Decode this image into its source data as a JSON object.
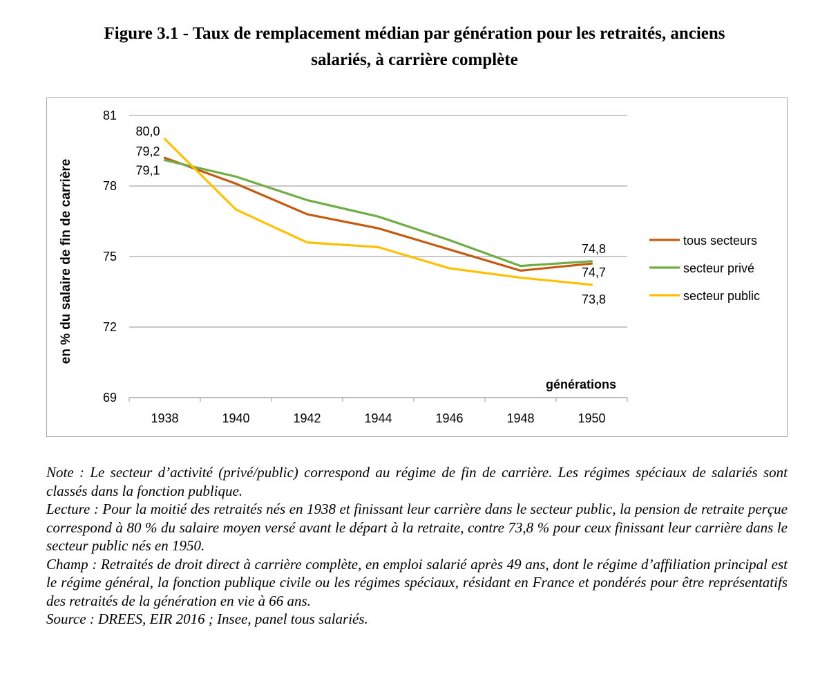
{
  "figure": {
    "title_line1": "Figure 3.1 - Taux de remplacement médian par génération pour les retraités, anciens",
    "title_line2": "salariés, à carrière complète"
  },
  "chart_data": {
    "type": "line",
    "x": [
      1938,
      1939,
      1940,
      1941,
      1942,
      1943,
      1944,
      1945,
      1946,
      1947,
      1948,
      1949,
      1950
    ],
    "x_tick_labels": [
      "1938",
      "1940",
      "1942",
      "1944",
      "1946",
      "1948",
      "1950"
    ],
    "xlabel": "générations",
    "ylabel": "en % du salaire de fin de carrière",
    "ylim": [
      69,
      81
    ],
    "y_ticks": [
      69,
      72,
      75,
      78,
      81
    ],
    "y_tick_labels": [
      "69",
      "72",
      "75",
      "78",
      "81"
    ],
    "grid": "horizontal",
    "legend_position": "right",
    "series": [
      {
        "name": "tous secteurs",
        "color": "#C55A11",
        "values": [
          79.2,
          null,
          78.1,
          null,
          76.8,
          null,
          76.2,
          null,
          75.3,
          null,
          74.4,
          null,
          74.7
        ],
        "labels": {
          "first": "79,2",
          "last": "74,7"
        }
      },
      {
        "name": "secteur privé",
        "color": "#70AD47",
        "values": [
          79.1,
          null,
          78.4,
          null,
          77.4,
          null,
          76.7,
          null,
          75.7,
          null,
          74.6,
          null,
          74.8
        ],
        "labels": {
          "first": "79,1",
          "last": "74,8"
        }
      },
      {
        "name": "secteur public",
        "color": "#FFC000",
        "values": [
          80.0,
          null,
          77.0,
          null,
          75.6,
          null,
          75.4,
          null,
          74.5,
          null,
          74.1,
          null,
          73.8
        ],
        "labels": {
          "first": "80,0",
          "last": "73,8"
        }
      }
    ]
  },
  "notes": {
    "note": "Note : Le secteur d’activité (privé/public) correspond au régime de fin de carrière. Les régimes spéciaux de salariés sont classés dans la fonction publique.",
    "lecture": "Lecture : Pour la moitié des retraités nés en 1938 et finissant leur carrière dans le secteur public, la pension de retraite perçue correspond à 80 % du salaire moyen versé avant le départ à la retraite, contre 73,8 % pour ceux finissant leur carrière dans le secteur public nés en 1950.",
    "champ": "Champ : Retraités de droit direct à carrière complète, en emploi salarié après 49 ans, dont le régime d’affiliation principal est le régime général, la fonction publique civile ou les régimes spéciaux, résidant en France et pondérés pour être représentatifs des retraités de la génération en vie à 66 ans.",
    "source": "Source : DREES, EIR 2016 ; Insee, panel tous salariés."
  }
}
